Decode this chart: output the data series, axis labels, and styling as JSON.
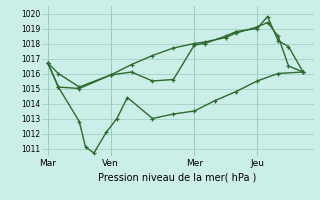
{
  "title": "Pression niveau de la mer( hPa )",
  "bg_color": "#cceee8",
  "grid_color": "#99ccbb",
  "line_color": "#2d6a2d",
  "ylim": [
    1010.5,
    1020.5
  ],
  "yticks": [
    1011,
    1012,
    1013,
    1014,
    1015,
    1016,
    1017,
    1018,
    1019,
    1020
  ],
  "xlabel_days": [
    "Mar",
    "Ven",
    "Mer",
    "Jeu"
  ],
  "vlines_x": [
    0.0,
    3.0,
    7.0,
    10.0
  ],
  "x_total": 12.5,
  "xlim": [
    -0.3,
    12.7
  ],
  "series1_x": [
    0.0,
    0.5,
    1.5,
    3.0,
    4.0,
    5.0,
    6.0,
    7.0,
    7.5,
    8.5,
    9.0,
    10.0,
    10.5,
    11.0,
    11.5,
    12.2
  ],
  "series1_y": [
    1016.7,
    1016.0,
    1015.1,
    1015.9,
    1016.1,
    1015.5,
    1015.6,
    1017.9,
    1018.0,
    1018.5,
    1018.8,
    1019.0,
    1019.8,
    1018.2,
    1017.8,
    1016.1
  ],
  "series2_x": [
    0.0,
    0.5,
    1.5,
    3.0,
    4.0,
    5.0,
    6.0,
    7.0,
    7.5,
    8.5,
    9.0,
    10.0,
    10.5,
    11.0,
    11.5,
    12.2
  ],
  "series2_y": [
    1016.7,
    1015.1,
    1015.0,
    1015.9,
    1016.6,
    1017.2,
    1017.7,
    1018.0,
    1018.1,
    1018.4,
    1018.7,
    1019.1,
    1019.4,
    1018.5,
    1016.5,
    1016.1
  ],
  "series3_x": [
    0.0,
    0.5,
    1.5,
    1.8,
    2.2,
    2.8,
    3.3,
    3.8,
    5.0,
    6.0,
    7.0,
    8.0,
    9.0,
    10.0,
    11.0,
    12.2
  ],
  "series3_y": [
    1016.7,
    1015.1,
    1012.8,
    1011.1,
    1010.7,
    1012.1,
    1013.0,
    1014.4,
    1013.0,
    1013.3,
    1013.5,
    1014.2,
    1014.8,
    1015.5,
    1016.0,
    1016.1
  ],
  "marker": "+",
  "markersize": 3.5,
  "linewidth": 1.0,
  "ytick_fontsize": 5.5,
  "xlabel_fontsize": 6.5,
  "title_fontsize": 7.0
}
